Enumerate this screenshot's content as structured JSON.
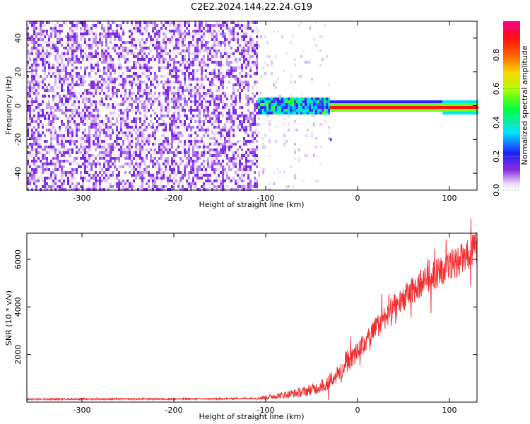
{
  "title": "C2E2.2024.144.22.24.G19",
  "chart_data": [
    {
      "type": "heatmap",
      "xlabel": "Height of straight line (km)",
      "ylabel": "Frequency (Hz)",
      "xlim": [
        -360,
        130
      ],
      "ylim": [
        -50,
        50
      ],
      "xticks": [
        -300,
        -200,
        -100,
        0,
        100
      ],
      "yticks": [
        -40,
        -20,
        0,
        20,
        40
      ],
      "colorbar": {
        "label": "Normalized spectral amplitude",
        "range": [
          0.0,
          1.0
        ],
        "ticks": [
          0.0,
          0.2,
          0.4,
          0.6,
          0.8
        ],
        "tick_labels": [
          "0.0",
          "0.2",
          "0.4",
          "0.6",
          "0.8"
        ],
        "colormap": "rainbow (white-violet-blue-cyan-green-yellow-red-magenta)"
      },
      "regions": {
        "noise_band_height_km": [
          -360,
          -110
        ],
        "transition_height_km": [
          -110,
          -30
        ],
        "signal_line_frequency_hz": 0,
        "signal_line_height_km": [
          -30,
          130
        ]
      }
    },
    {
      "type": "line",
      "xlabel": "Height of straight line (km)",
      "ylabel": "SNR (10 * v/v)",
      "xlim": [
        -360,
        130
      ],
      "ylim": [
        0,
        7100
      ],
      "xticks": [
        -300,
        -200,
        -100,
        0,
        100
      ],
      "yticks": [
        2000,
        4000,
        6000
      ],
      "series": [
        {
          "color": "#f03030",
          "x": [
            -360,
            -300,
            -200,
            -150,
            -110,
            -100,
            -80,
            -60,
            -40,
            -20,
            -10,
            0,
            10,
            20,
            30,
            40,
            50,
            60,
            70,
            80,
            90,
            100,
            110,
            120,
            130
          ],
          "y": [
            120,
            130,
            130,
            140,
            160,
            200,
            300,
            420,
            650,
            1200,
            1700,
            2100,
            2600,
            3100,
            3600,
            4000,
            4350,
            4700,
            5000,
            5300,
            5500,
            5700,
            5950,
            6150,
            6550
          ]
        }
      ]
    }
  ]
}
